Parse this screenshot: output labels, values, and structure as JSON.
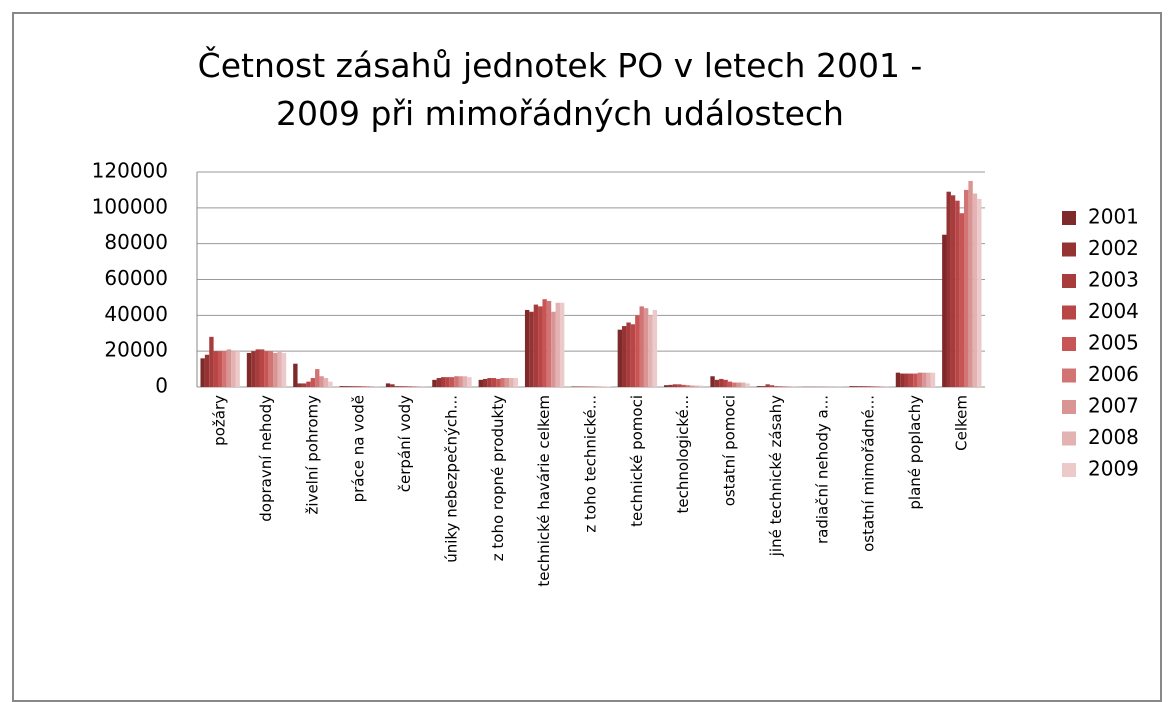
{
  "chart_data": {
    "type": "bar",
    "title": "Četnost zásahů jednotek PO v letech 2001 - 2009 při mimořádných událostech",
    "categories": [
      "požáry",
      "dopravní nehody",
      "živelní pohromy",
      "práce na vodě",
      "čerpání vody",
      "úniky nebezpečných...",
      "z toho ropné produkty",
      "technické havárie celkem",
      "z toho technické...",
      "technické pomoci",
      "technologické...",
      "ostatní pomoci",
      "jiné technické zásahy",
      "radiační nehody a...",
      "ostatní mimořádné...",
      "plané poplachy",
      "Celkem"
    ],
    "series": [
      {
        "name": "2001",
        "color": "#7f2a2a",
        "values": [
          16000,
          19000,
          13000,
          500,
          2000,
          4000,
          4000,
          43000,
          300,
          32000,
          1000,
          6000,
          500,
          100,
          500,
          8000,
          85000
        ]
      },
      {
        "name": "2002",
        "color": "#953333",
        "values": [
          18000,
          20000,
          2000,
          500,
          1500,
          5000,
          4500,
          42000,
          300,
          34000,
          1200,
          4000,
          500,
          100,
          500,
          7500,
          109000
        ]
      },
      {
        "name": "2003",
        "color": "#a83c3c",
        "values": [
          28000,
          21000,
          2000,
          500,
          500,
          5500,
          5000,
          46000,
          300,
          36000,
          1500,
          4500,
          1500,
          100,
          500,
          7500,
          107000
        ]
      },
      {
        "name": "2004",
        "color": "#b84646",
        "values": [
          20000,
          21000,
          3000,
          500,
          500,
          5500,
          5000,
          45000,
          300,
          35000,
          1500,
          4000,
          1000,
          100,
          500,
          7500,
          104000
        ]
      },
      {
        "name": "2005",
        "color": "#c85555",
        "values": [
          20000,
          20000,
          5000,
          500,
          500,
          5500,
          4500,
          49000,
          300,
          40000,
          1200,
          3000,
          500,
          100,
          500,
          7500,
          97000
        ]
      },
      {
        "name": "2006",
        "color": "#d27474",
        "values": [
          20000,
          20000,
          10000,
          500,
          500,
          6000,
          5000,
          48000,
          300,
          45000,
          1000,
          2500,
          500,
          100,
          500,
          8000,
          110000
        ]
      },
      {
        "name": "2007",
        "color": "#d99494",
        "values": [
          21000,
          19000,
          6000,
          500,
          500,
          6000,
          5000,
          42000,
          300,
          44000,
          800,
          2500,
          500,
          100,
          500,
          8000,
          115000
        ]
      },
      {
        "name": "2008",
        "color": "#e3b2b2",
        "values": [
          20000,
          20000,
          5000,
          500,
          500,
          6000,
          5000,
          47000,
          300,
          40000,
          800,
          2500,
          500,
          100,
          500,
          8000,
          108000
        ]
      },
      {
        "name": "2009",
        "color": "#eccaca",
        "values": [
          20000,
          19000,
          3000,
          500,
          500,
          5500,
          5000,
          47000,
          300,
          43000,
          800,
          2000,
          500,
          100,
          500,
          8000,
          105000
        ]
      }
    ],
    "ylim": [
      0,
      120000
    ],
    "yticks": [
      0,
      20000,
      40000,
      60000,
      80000,
      100000,
      120000
    ],
    "grid": true,
    "legend": "right"
  }
}
